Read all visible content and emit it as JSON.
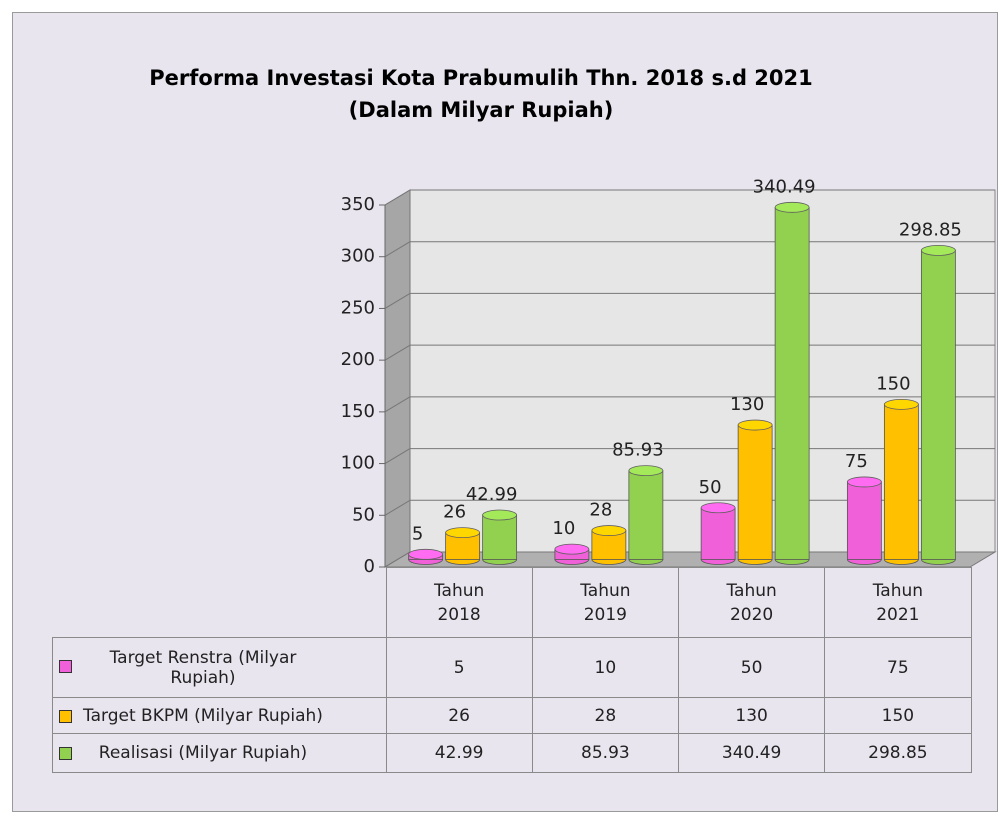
{
  "chart_data": {
    "type": "bar",
    "title": "Performa Investasi Kota Prabumulih  Thn. 2018 s.d 2021",
    "subtitle": "(Dalam Milyar Rupiah)",
    "categories": [
      "Tahun 2018",
      "Tahun 2019",
      "Tahun 2020",
      "Tahun 2021"
    ],
    "series": [
      {
        "name": "Target Renstra (Milyar Rupiah)",
        "color": "#f060d8",
        "values": [
          5,
          10,
          50,
          75
        ]
      },
      {
        "name": "Target BKPM (Milyar Rupiah)",
        "color": "#ffc000",
        "values": [
          26,
          28,
          130,
          150
        ]
      },
      {
        "name": "Realisasi (Milyar Rupiah)",
        "color": "#92d050",
        "values": [
          42.99,
          85.93,
          340.49,
          298.85
        ]
      }
    ],
    "ylim": [
      0,
      350
    ],
    "yticks": [
      0,
      50,
      100,
      150,
      200,
      250,
      300,
      350
    ],
    "grid": true
  }
}
